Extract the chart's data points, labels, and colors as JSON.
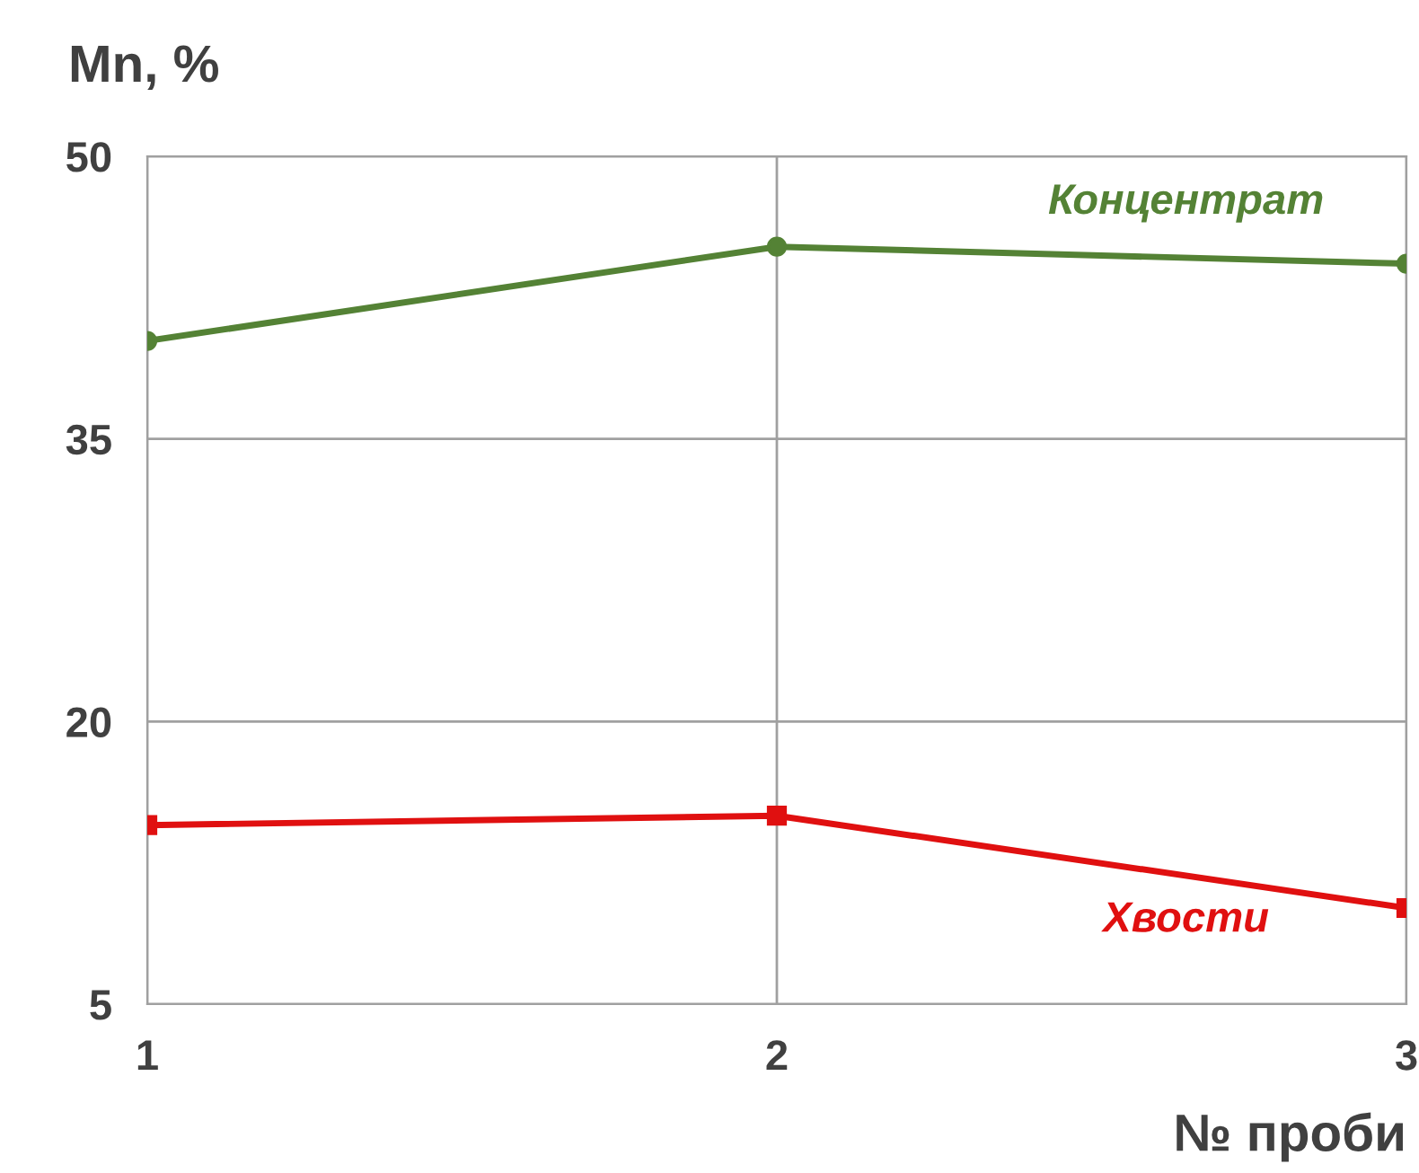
{
  "chart_data": {
    "type": "line",
    "xlabel": "№ проби",
    "ylabel": "Mn, %",
    "x": [
      1,
      2,
      3
    ],
    "xlim": [
      1,
      3
    ],
    "xticks": [
      1,
      2,
      3
    ],
    "ylim": [
      5,
      50
    ],
    "yticks": [
      5,
      20,
      35,
      50
    ],
    "grid": true,
    "series": [
      {
        "name": "Концентрат",
        "color": "#548235",
        "marker": "circle",
        "values": [
          40.2,
          45.2,
          44.3
        ]
      },
      {
        "name": "Хвости",
        "color": "#e01010",
        "marker": "square",
        "values": [
          14.5,
          15.0,
          10.1
        ]
      }
    ]
  }
}
